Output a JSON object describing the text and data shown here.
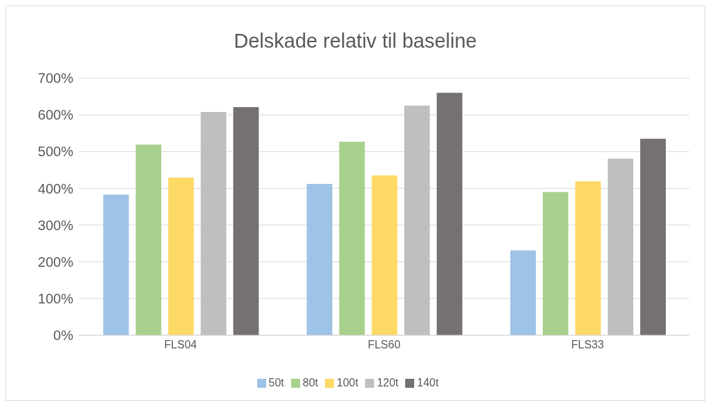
{
  "chart_data": {
    "type": "bar",
    "title": "Delskade relativ til baseline",
    "categories": [
      "FLS04",
      "FLS60",
      "FLS33"
    ],
    "series": [
      {
        "name": "50t",
        "color": "#9dc3e6",
        "values": [
          383,
          412,
          231
        ]
      },
      {
        "name": "80t",
        "color": "#a9d18e",
        "values": [
          519,
          527,
          390
        ]
      },
      {
        "name": "100t",
        "color": "#ffd966",
        "values": [
          429,
          435,
          419
        ]
      },
      {
        "name": "120t",
        "color": "#bfbfbf",
        "values": [
          608,
          625,
          481
        ]
      },
      {
        "name": "140t",
        "color": "#767171",
        "values": [
          621,
          660,
          535
        ]
      }
    ],
    "ylim": [
      0,
      700
    ],
    "yticks": [
      {
        "value": 0,
        "label": "0%"
      },
      {
        "value": 100,
        "label": "100%"
      },
      {
        "value": 200,
        "label": "200%"
      },
      {
        "value": 300,
        "label": "300%"
      },
      {
        "value": 400,
        "label": "400%"
      },
      {
        "value": 500,
        "label": "500%"
      },
      {
        "value": 600,
        "label": "600%"
      },
      {
        "value": 700,
        "label": "700%"
      }
    ],
    "grid": "y",
    "legend": "bottom"
  }
}
